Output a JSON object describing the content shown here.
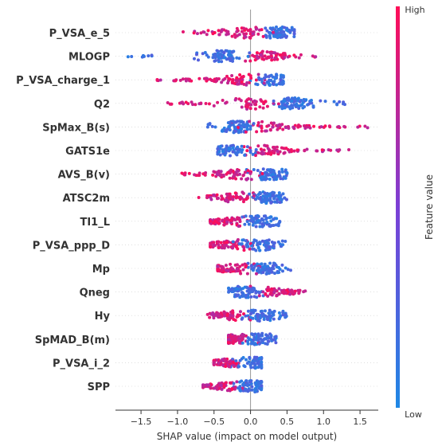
{
  "chart_data": {
    "type": "scatter",
    "subtype": "shap-beeswarm",
    "title": "",
    "xlabel": "SHAP value (impact on model output)",
    "xlim": [
      -1.85,
      1.75
    ],
    "xticks": [
      -1.5,
      -1.0,
      -0.5,
      0.0,
      0.5,
      1.0,
      1.5
    ],
    "xtick_labels": [
      "−1.5",
      "−1.0",
      "−0.5",
      "0.0",
      "0.5",
      "1.0",
      "1.5"
    ],
    "grid": false,
    "colorbar": {
      "title": "Feature value",
      "high_label": "High",
      "low_label": "Low",
      "high_color": "#ff0d57",
      "low_color": "#1e88e5",
      "mid_color": "#7b3fd6"
    },
    "features": [
      {
        "name": "P_VSA_e_5",
        "min": -0.95,
        "max": 0.6,
        "low_side": "right",
        "low_x": 0.42
      },
      {
        "name": "MLOGP",
        "min": -1.75,
        "max": 0.9,
        "low_side": "left",
        "low_x": -0.4
      },
      {
        "name": "P_VSA_charge_1",
        "min": -1.3,
        "max": 0.45,
        "low_side": "right",
        "low_x": 0.3
      },
      {
        "name": "Q2",
        "min": -1.15,
        "max": 1.3,
        "low_side": "right",
        "low_x": 0.55
      },
      {
        "name": "SpMax_B(s)",
        "min": -0.6,
        "max": 1.7,
        "low_side": "left",
        "low_x": -0.15
      },
      {
        "name": "GATS1e",
        "min": -0.45,
        "max": 1.35,
        "low_side": "left",
        "low_x": -0.2
      },
      {
        "name": "AVS_B(v)",
        "min": -0.95,
        "max": 0.5,
        "low_side": "right",
        "low_x": 0.22
      },
      {
        "name": "ATSC2m",
        "min": -0.75,
        "max": 0.5,
        "low_side": "right",
        "low_x": 0.2
      },
      {
        "name": "TI1_L",
        "min": -0.55,
        "max": 0.4,
        "low_side": "right",
        "low_x": 0.1
      },
      {
        "name": "P_VSA_ppp_D",
        "min": -0.55,
        "max": 0.5,
        "low_side": "right",
        "low_x": 0.1
      },
      {
        "name": "Mp",
        "min": -0.45,
        "max": 0.55,
        "low_side": "right",
        "low_x": 0.15
      },
      {
        "name": "Qneg",
        "min": -0.3,
        "max": 0.75,
        "low_side": "left",
        "low_x": -0.05
      },
      {
        "name": "Hy",
        "min": -0.6,
        "max": 0.5,
        "low_side": "right",
        "low_x": 0.15
      },
      {
        "name": "SpMAD_B(m)",
        "min": -0.3,
        "max": 0.35,
        "low_side": "right",
        "low_x": 0.1
      },
      {
        "name": "P_VSA_i_2",
        "min": -0.5,
        "max": 0.15,
        "low_side": "right",
        "low_x": 0.02
      },
      {
        "name": "SPP",
        "min": -0.65,
        "max": 0.15,
        "low_side": "right",
        "low_x": 0.0
      }
    ]
  }
}
